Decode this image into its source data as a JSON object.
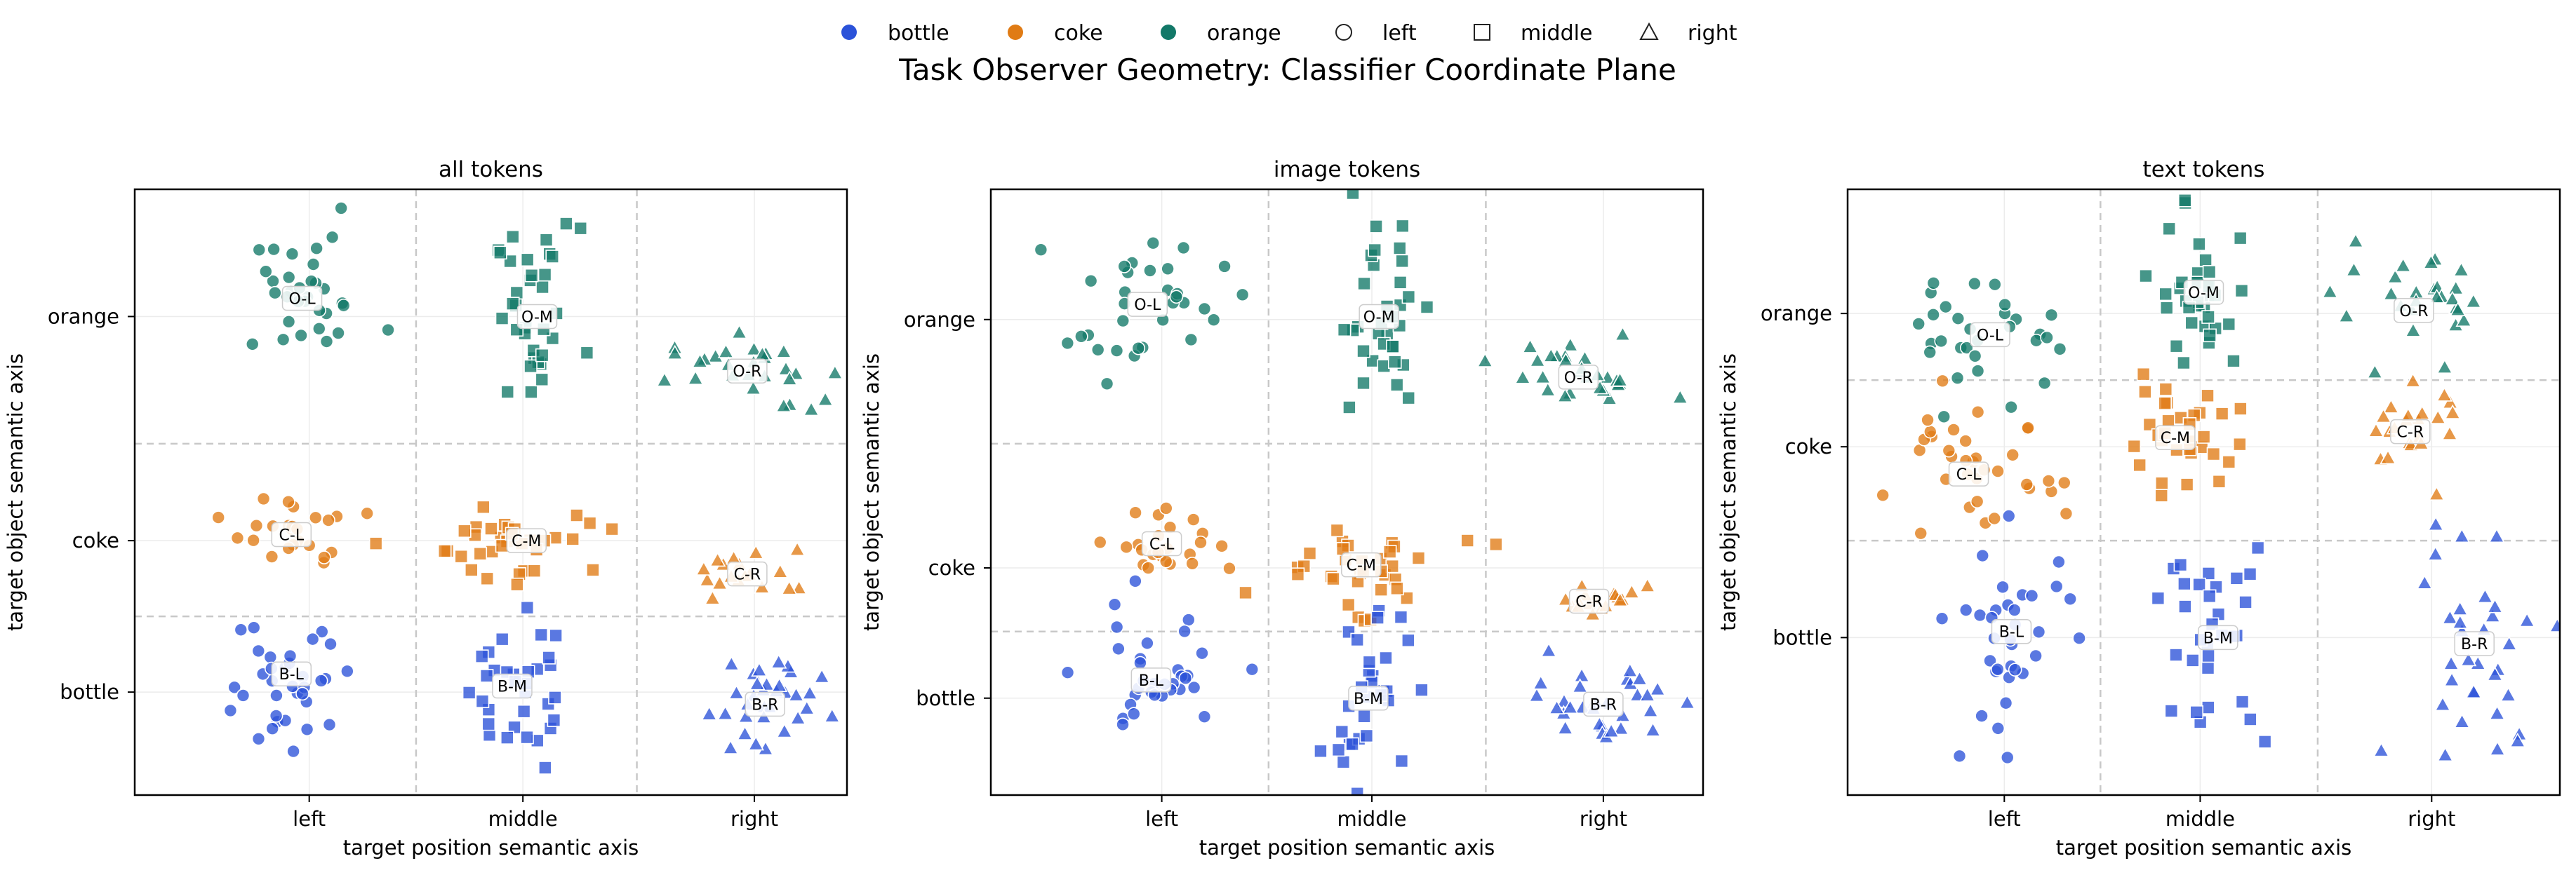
{
  "title": "Task Observer Geometry: Classifier Coordinate Plane",
  "legend": [
    {
      "label": "bottle",
      "kind": "color",
      "color": "#2b52d9"
    },
    {
      "label": "coke",
      "kind": "color",
      "color": "#e07b14"
    },
    {
      "label": "orange",
      "kind": "color",
      "color": "#127868"
    },
    {
      "label": "left",
      "kind": "marker",
      "marker": "circle"
    },
    {
      "label": "middle",
      "kind": "marker",
      "marker": "square"
    },
    {
      "label": "right",
      "kind": "marker",
      "marker": "triangle"
    }
  ],
  "colors": {
    "bottle": "#2b52d9",
    "coke": "#e07b14",
    "orange": "#127868"
  },
  "chart_data": [
    {
      "type": "scatter",
      "title": "all tokens",
      "xlabel": "target position semantic axis",
      "ylabel": "target object semantic axis",
      "xlim": [
        0,
        10
      ],
      "ylim": [
        0,
        10
      ],
      "x_ticks": [
        {
          "label": "left",
          "value": 2.45
        },
        {
          "label": "middle",
          "value": 5.45
        },
        {
          "label": "right",
          "value": 8.7
        }
      ],
      "y_ticks": [
        {
          "label": "orange",
          "value": 7.9
        },
        {
          "label": "coke",
          "value": 4.2
        },
        {
          "label": "bottle",
          "value": 1.7
        }
      ],
      "x_dividers": [
        3.95,
        7.05
      ],
      "y_dividers": [
        5.8,
        2.95
      ],
      "clusters": [
        {
          "label": "O-L",
          "object": "orange",
          "position": "left",
          "cx": 2.35,
          "cy": 8.2,
          "sx": 0.55,
          "sy": 0.5,
          "n": 32
        },
        {
          "label": "O-M",
          "object": "orange",
          "position": "middle",
          "cx": 5.65,
          "cy": 7.9,
          "sx": 0.3,
          "sy": 0.75,
          "n": 34
        },
        {
          "label": "O-R",
          "object": "orange",
          "position": "right",
          "cx": 8.6,
          "cy": 7.0,
          "sx": 0.55,
          "sy": 0.3,
          "n": 28
        },
        {
          "label": "C-L",
          "object": "coke",
          "position": "left",
          "cx": 2.2,
          "cy": 4.3,
          "sx": 0.4,
          "sy": 0.3,
          "n": 24
        },
        {
          "label": "C-M",
          "object": "coke",
          "position": "middle",
          "cx": 5.5,
          "cy": 4.2,
          "sx": 0.65,
          "sy": 0.35,
          "n": 34
        },
        {
          "label": "C-R",
          "object": "coke",
          "position": "right",
          "cx": 8.6,
          "cy": 3.65,
          "sx": 0.5,
          "sy": 0.2,
          "n": 18
        },
        {
          "label": "B-L",
          "object": "bottle",
          "position": "left",
          "cx": 2.2,
          "cy": 2.0,
          "sx": 0.5,
          "sy": 0.65,
          "n": 34
        },
        {
          "label": "B-M",
          "object": "bottle",
          "position": "middle",
          "cx": 5.3,
          "cy": 1.8,
          "sx": 0.3,
          "sy": 0.7,
          "n": 32
        },
        {
          "label": "B-R",
          "object": "bottle",
          "position": "right",
          "cx": 8.85,
          "cy": 1.5,
          "sx": 0.4,
          "sy": 0.45,
          "n": 32
        }
      ]
    },
    {
      "type": "scatter",
      "title": "image tokens",
      "xlabel": "target position semantic axis",
      "ylabel": "target object semantic axis",
      "xlim": [
        0,
        10
      ],
      "ylim": [
        0,
        10
      ],
      "x_ticks": [
        {
          "label": "left",
          "value": 2.4
        },
        {
          "label": "middle",
          "value": 5.35
        },
        {
          "label": "right",
          "value": 8.6
        }
      ],
      "y_ticks": [
        {
          "label": "orange",
          "value": 7.85
        },
        {
          "label": "coke",
          "value": 3.75
        },
        {
          "label": "bottle",
          "value": 1.6
        }
      ],
      "x_dividers": [
        3.9,
        6.95
      ],
      "y_dividers": [
        5.8,
        2.7
      ],
      "clusters": [
        {
          "label": "O-L",
          "object": "orange",
          "position": "left",
          "cx": 2.2,
          "cy": 8.1,
          "sx": 0.55,
          "sy": 0.55,
          "n": 32
        },
        {
          "label": "O-M",
          "object": "orange",
          "position": "middle",
          "cx": 5.45,
          "cy": 7.9,
          "sx": 0.3,
          "sy": 0.75,
          "n": 34
        },
        {
          "label": "O-R",
          "object": "orange",
          "position": "right",
          "cx": 8.25,
          "cy": 6.9,
          "sx": 0.55,
          "sy": 0.3,
          "n": 28
        },
        {
          "label": "C-L",
          "object": "coke",
          "position": "left",
          "cx": 2.4,
          "cy": 4.15,
          "sx": 0.35,
          "sy": 0.35,
          "n": 24
        },
        {
          "label": "C-M",
          "object": "coke",
          "position": "middle",
          "cx": 5.2,
          "cy": 3.8,
          "sx": 0.65,
          "sy": 0.35,
          "n": 34
        },
        {
          "label": "C-R",
          "object": "coke",
          "position": "right",
          "cx": 8.4,
          "cy": 3.2,
          "sx": 0.45,
          "sy": 0.15,
          "n": 18
        },
        {
          "label": "B-L",
          "object": "bottle",
          "position": "left",
          "cx": 2.25,
          "cy": 1.9,
          "sx": 0.55,
          "sy": 0.55,
          "n": 34
        },
        {
          "label": "B-M",
          "object": "bottle",
          "position": "middle",
          "cx": 5.3,
          "cy": 1.6,
          "sx": 0.3,
          "sy": 0.7,
          "n": 32
        },
        {
          "label": "B-R",
          "object": "bottle",
          "position": "right",
          "cx": 8.6,
          "cy": 1.5,
          "sx": 0.45,
          "sy": 0.4,
          "n": 32
        }
      ]
    },
    {
      "type": "scatter",
      "title": "text tokens",
      "xlabel": "target position semantic axis",
      "ylabel": "target object semantic axis",
      "xlim": [
        0,
        10
      ],
      "ylim": [
        0,
        10
      ],
      "x_ticks": [
        {
          "label": "left",
          "value": 2.2
        },
        {
          "label": "middle",
          "value": 4.95
        },
        {
          "label": "right",
          "value": 8.2
        }
      ],
      "y_ticks": [
        {
          "label": "orange",
          "value": 7.95
        },
        {
          "label": "coke",
          "value": 5.75
        },
        {
          "label": "bottle",
          "value": 2.6
        }
      ],
      "x_dividers": [
        3.55,
        6.6
      ],
      "y_dividers": [
        6.85,
        4.2
      ],
      "clusters": [
        {
          "label": "O-L",
          "object": "orange",
          "position": "left",
          "cx": 2.0,
          "cy": 7.6,
          "sx": 0.55,
          "sy": 0.45,
          "n": 30
        },
        {
          "label": "O-M",
          "object": "orange",
          "position": "middle",
          "cx": 5.0,
          "cy": 8.3,
          "sx": 0.35,
          "sy": 0.7,
          "n": 34
        },
        {
          "label": "O-R",
          "object": "orange",
          "position": "right",
          "cx": 7.95,
          "cy": 8.0,
          "sx": 0.55,
          "sy": 0.4,
          "n": 28
        },
        {
          "label": "C-L",
          "object": "coke",
          "position": "left",
          "cx": 1.7,
          "cy": 5.3,
          "sx": 0.65,
          "sy": 0.55,
          "n": 34
        },
        {
          "label": "C-M",
          "object": "coke",
          "position": "middle",
          "cx": 4.6,
          "cy": 5.9,
          "sx": 0.45,
          "sy": 0.4,
          "n": 32
        },
        {
          "label": "C-R",
          "object": "coke",
          "position": "right",
          "cx": 7.9,
          "cy": 6.0,
          "sx": 0.35,
          "sy": 0.4,
          "n": 22
        },
        {
          "label": "B-L",
          "object": "bottle",
          "position": "left",
          "cx": 2.3,
          "cy": 2.7,
          "sx": 0.45,
          "sy": 0.85,
          "n": 34
        },
        {
          "label": "B-M",
          "object": "bottle",
          "position": "middle",
          "cx": 5.2,
          "cy": 2.6,
          "sx": 0.35,
          "sy": 0.85,
          "n": 32
        },
        {
          "label": "B-R",
          "object": "bottle",
          "position": "right",
          "cx": 8.8,
          "cy": 2.5,
          "sx": 0.55,
          "sy": 1.0,
          "n": 34
        }
      ]
    }
  ]
}
